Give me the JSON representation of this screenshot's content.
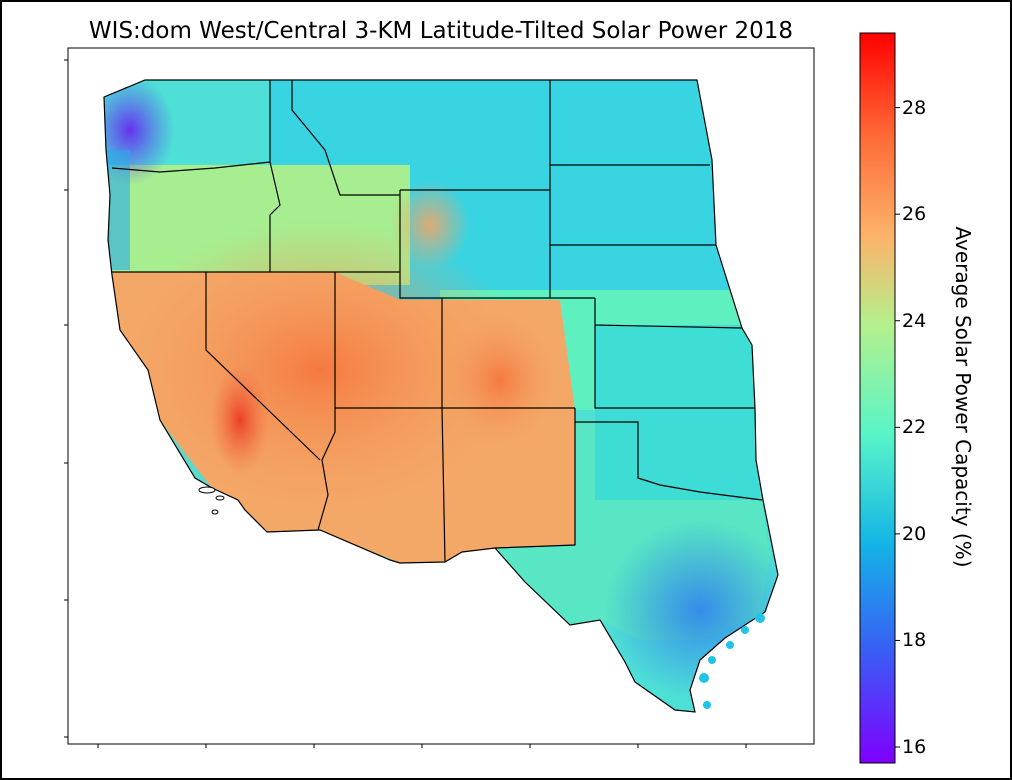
{
  "title": "WIS:dom West/Central 3-KM Latitude-Tilted Solar Power 2018",
  "colorbar": {
    "label": "Average Solar Power Capacity (%)",
    "min": 15.7,
    "max": 29.4,
    "ticks": [
      {
        "value": 16,
        "label": "16"
      },
      {
        "value": 18,
        "label": "18"
      },
      {
        "value": 20,
        "label": "20"
      },
      {
        "value": 22,
        "label": "22"
      },
      {
        "value": 24,
        "label": "24"
      },
      {
        "value": 26,
        "label": "26"
      },
      {
        "value": 28,
        "label": "28"
      }
    ],
    "colormap": "rainbow",
    "colors": [
      "#7f00ff",
      "#3a5cf5",
      "#14b4e6",
      "#58f5c8",
      "#b4f08c",
      "#fbb46a",
      "#ff6a36",
      "#ff0000"
    ]
  },
  "map": {
    "region": "Western and Central United States",
    "border_color": "#000000"
  }
}
